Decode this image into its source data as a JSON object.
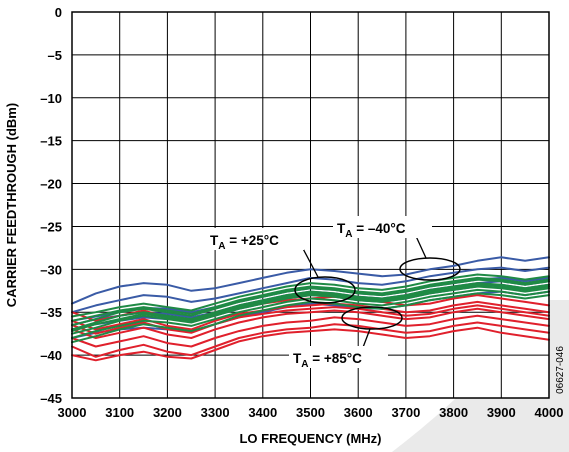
{
  "chart_data": {
    "type": "line",
    "title": "",
    "xlabel": "LO FREQUENCY (MHz)",
    "ylabel": "CARRIER FEEDTHROUGH (dBm)",
    "xlim": [
      3000,
      4000
    ],
    "ylim": [
      -45,
      0
    ],
    "grid": true,
    "legend": "none",
    "x_ticks": [
      "3000",
      "3100",
      "3200",
      "3300",
      "3400",
      "3500",
      "3600",
      "3700",
      "3800",
      "3900",
      "4000"
    ],
    "y_ticks": [
      "0",
      "–5",
      "–10",
      "–15",
      "–20",
      "–25",
      "–30",
      "–35",
      "–40",
      "–45"
    ],
    "x": [
      3000,
      3050,
      3100,
      3150,
      3200,
      3250,
      3300,
      3350,
      3400,
      3450,
      3500,
      3550,
      3600,
      3650,
      3700,
      3750,
      3800,
      3850,
      3900,
      3950,
      4000
    ],
    "series": [
      {
        "color": "#3a5ba6",
        "values": [
          -34.0,
          -32.8,
          -32.0,
          -31.6,
          -31.8,
          -32.5,
          -32.2,
          -31.6,
          -31.0,
          -30.4,
          -30.0,
          -30.2,
          -30.5,
          -30.8,
          -30.6,
          -30.0,
          -29.6,
          -29.0,
          -28.6,
          -29.0,
          -28.6
        ]
      },
      {
        "color": "#3a5ba6",
        "values": [
          -35.0,
          -34.2,
          -33.6,
          -33.0,
          -33.2,
          -33.8,
          -33.4,
          -32.8,
          -32.2,
          -31.6,
          -31.0,
          -31.2,
          -31.6,
          -31.8,
          -31.4,
          -30.8,
          -30.4,
          -30.0,
          -29.8,
          -30.2,
          -29.8
        ]
      },
      {
        "color": "#3a5ba6",
        "values": [
          -36.0,
          -35.5,
          -35.0,
          -34.5,
          -34.6,
          -35.0,
          -34.4,
          -33.8,
          -33.2,
          -32.6,
          -32.2,
          -32.4,
          -32.8,
          -33.0,
          -32.6,
          -32.0,
          -31.6,
          -31.2,
          -31.0,
          -31.4,
          -31.0
        ]
      },
      {
        "color": "#3a5ba6",
        "values": [
          -37.0,
          -36.4,
          -36.0,
          -35.6,
          -35.8,
          -36.0,
          -35.4,
          -34.6,
          -34.0,
          -33.4,
          -33.0,
          -33.2,
          -33.6,
          -33.8,
          -33.4,
          -32.8,
          -32.4,
          -32.0,
          -31.8,
          -32.2,
          -31.8
        ]
      },
      {
        "color": "#3a5ba6",
        "values": [
          -38.0,
          -37.4,
          -37.0,
          -36.8,
          -37.0,
          -37.2,
          -36.4,
          -35.6,
          -35.0,
          -34.4,
          -34.0,
          -34.2,
          -34.5,
          -34.6,
          -34.2,
          -33.6,
          -33.2,
          -32.8,
          -32.6,
          -33.0,
          -32.6
        ]
      },
      {
        "color": "#3a5ba6",
        "values": [
          -36.5,
          -35.8,
          -35.4,
          -35.0,
          -35.2,
          -35.6,
          -35.0,
          -34.2,
          -33.6,
          -33.0,
          -32.6,
          -32.8,
          -33.2,
          -33.4,
          -33.0,
          -32.4,
          -32.0,
          -31.6,
          -31.4,
          -31.8,
          -31.4
        ]
      },
      {
        "color": "#e0202c",
        "values": [
          -39.0,
          -40.2,
          -39.4,
          -38.8,
          -39.6,
          -40.0,
          -39.0,
          -38.0,
          -37.4,
          -37.0,
          -36.8,
          -36.4,
          -36.6,
          -37.0,
          -37.4,
          -37.2,
          -36.6,
          -36.2,
          -36.6,
          -37.0,
          -37.4
        ]
      },
      {
        "color": "#e0202c",
        "values": [
          -38.0,
          -39.0,
          -38.4,
          -37.8,
          -38.6,
          -39.0,
          -38.0,
          -37.2,
          -36.6,
          -36.2,
          -36.0,
          -35.6,
          -35.8,
          -36.2,
          -36.6,
          -36.4,
          -35.8,
          -35.4,
          -35.8,
          -36.2,
          -36.6
        ]
      },
      {
        "color": "#e0202c",
        "values": [
          -37.0,
          -38.0,
          -37.4,
          -36.8,
          -37.6,
          -38.0,
          -37.0,
          -36.2,
          -35.6,
          -35.2,
          -35.0,
          -34.8,
          -35.0,
          -35.4,
          -35.8,
          -35.6,
          -35.0,
          -34.6,
          -35.0,
          -35.4,
          -35.8
        ]
      },
      {
        "color": "#e0202c",
        "values": [
          -36.0,
          -37.0,
          -36.4,
          -35.8,
          -36.6,
          -37.0,
          -36.0,
          -35.2,
          -34.8,
          -34.4,
          -34.2,
          -34.0,
          -34.2,
          -34.6,
          -35.0,
          -34.8,
          -34.2,
          -33.8,
          -34.2,
          -34.6,
          -35.0
        ]
      },
      {
        "color": "#e0202c",
        "values": [
          -35.0,
          -36.0,
          -35.4,
          -34.8,
          -35.6,
          -36.0,
          -35.0,
          -34.4,
          -34.0,
          -33.6,
          -33.4,
          -33.2,
          -33.4,
          -33.8,
          -34.2,
          -34.0,
          -33.4,
          -33.0,
          -33.4,
          -33.8,
          -34.2
        ]
      },
      {
        "color": "#e0202c",
        "values": [
          -40.0,
          -40.6,
          -40.0,
          -39.6,
          -40.2,
          -40.4,
          -39.4,
          -38.4,
          -37.8,
          -37.4,
          -37.2,
          -37.0,
          -37.2,
          -37.6,
          -38.0,
          -37.8,
          -37.2,
          -36.8,
          -37.4,
          -37.8,
          -38.2
        ]
      },
      {
        "color": "#e0202c",
        "values": [
          -36.5,
          -37.5,
          -36.8,
          -36.2,
          -37.0,
          -37.4,
          -36.4,
          -35.6,
          -35.2,
          -34.8,
          -34.6,
          -34.4,
          -34.6,
          -35.0,
          -35.4,
          -35.2,
          -34.6,
          -34.2,
          -34.6,
          -35.0,
          -35.4
        ]
      },
      {
        "color": "#1f8a45",
        "values": [
          -38.5,
          -37.8,
          -37.0,
          -36.4,
          -36.8,
          -37.2,
          -36.4,
          -35.4,
          -34.8,
          -34.2,
          -33.8,
          -34.0,
          -34.4,
          -34.6,
          -34.2,
          -33.6,
          -33.2,
          -32.8,
          -33.0,
          -33.4,
          -33.0
        ]
      },
      {
        "color": "#1f8a45",
        "values": [
          -37.5,
          -36.8,
          -36.0,
          -35.4,
          -35.8,
          -36.2,
          -35.4,
          -34.6,
          -34.0,
          -33.4,
          -33.0,
          -33.2,
          -33.6,
          -33.8,
          -33.4,
          -32.8,
          -32.4,
          -32.0,
          -32.2,
          -32.6,
          -32.2
        ]
      },
      {
        "color": "#1f8a45",
        "values": [
          -36.5,
          -35.8,
          -35.0,
          -34.6,
          -35.0,
          -35.4,
          -34.6,
          -33.8,
          -33.2,
          -32.6,
          -32.2,
          -32.4,
          -32.8,
          -33.0,
          -32.6,
          -32.0,
          -31.6,
          -31.2,
          -31.4,
          -31.8,
          -31.4
        ]
      },
      {
        "color": "#1f8a45",
        "values": [
          -35.5,
          -35.0,
          -34.4,
          -34.0,
          -34.4,
          -34.8,
          -34.0,
          -33.2,
          -32.6,
          -32.0,
          -31.6,
          -31.8,
          -32.2,
          -32.4,
          -32.0,
          -31.4,
          -31.0,
          -30.6,
          -30.8,
          -31.2,
          -30.8
        ]
      },
      {
        "color": "#1f8a45",
        "values": [
          -37.0,
          -36.2,
          -35.4,
          -35.0,
          -35.4,
          -35.8,
          -35.0,
          -34.2,
          -33.6,
          -33.0,
          -32.6,
          -32.8,
          -33.2,
          -33.4,
          -33.0,
          -32.4,
          -32.0,
          -31.6,
          -31.8,
          -32.2,
          -31.8
        ]
      },
      {
        "color": "#1f8a45",
        "values": [
          -38.0,
          -37.2,
          -36.6,
          -36.0,
          -36.2,
          -36.6,
          -35.8,
          -35.0,
          -34.4,
          -33.8,
          -33.4,
          -33.6,
          -34.0,
          -34.2,
          -33.8,
          -33.2,
          -32.8,
          -32.4,
          -32.6,
          -33.0,
          -32.6
        ]
      },
      {
        "color": "#1f8a45",
        "values": [
          -36.0,
          -35.4,
          -34.8,
          -34.4,
          -34.8,
          -35.2,
          -34.4,
          -33.6,
          -33.0,
          -32.4,
          -32.0,
          -32.2,
          -32.6,
          -32.8,
          -32.4,
          -31.8,
          -31.4,
          -31.0,
          -31.2,
          -31.6,
          -31.2
        ]
      },
      {
        "color": "#1f8a45",
        "values": [
          -37.2,
          -36.4,
          -35.8,
          -35.2,
          -35.6,
          -36.0,
          -35.2,
          -34.4,
          -33.8,
          -33.2,
          -32.8,
          -33.0,
          -33.4,
          -33.6,
          -33.2,
          -32.6,
          -32.2,
          -31.8,
          -32.0,
          -32.4,
          -32.0
        ]
      }
    ],
    "annotations": [
      {
        "prefix": "T",
        "sub": "A",
        "suffix": " = +25°C"
      },
      {
        "prefix": "T",
        "sub": "A",
        "suffix": " = –40°C"
      },
      {
        "prefix": "T",
        "sub": "A",
        "suffix": " = +85°C"
      }
    ],
    "figure_id": "06627-046"
  }
}
